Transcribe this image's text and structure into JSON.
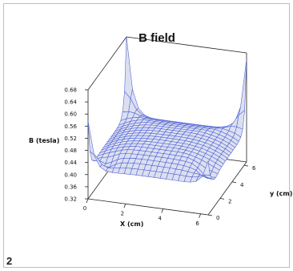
{
  "figure_label": "2",
  "colors": {
    "surface_fill": "#dcdff0",
    "mesh_line": "#4a5fd4",
    "box_line": "#222222",
    "axis_text": "#111111"
  },
  "chart_data": {
    "type": "surface",
    "title": "B field",
    "zlabel": "B (tesla)",
    "xlabel": "X (cm)",
    "ylabel": "y (cm)",
    "z_ticks": [
      "0.68",
      "0.64",
      "0.60",
      "0.56",
      "0.52",
      "0.48",
      "0.44",
      "0.40",
      "0.36",
      "0.32"
    ],
    "x_ticks": [
      "0",
      "2",
      "4",
      "6"
    ],
    "y_ticks": [
      "0",
      "2",
      "4",
      "6"
    ],
    "zlim": [
      0.32,
      0.68
    ],
    "xlim": [
      0,
      6.4
    ],
    "ylim": [
      0,
      6.4
    ],
    "grid_size": 20,
    "peaks": [
      {
        "corner": "x-min, y-min",
        "value": 0.58
      },
      {
        "corner": "x-min, y-max",
        "value": 0.69
      },
      {
        "corner": "x-max, y-max",
        "value": 0.66
      },
      {
        "corner": "x-max, y-min",
        "value": 0.5
      }
    ],
    "center_value": 0.46,
    "edge_value": 0.42
  }
}
